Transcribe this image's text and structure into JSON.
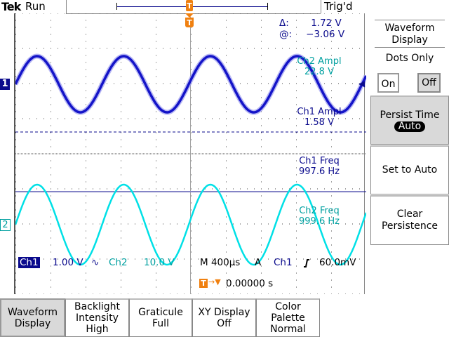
{
  "header": {
    "brand": "Tek",
    "acq_state": "Run",
    "trigger_status": "Trig'd"
  },
  "trigger_marker": "T",
  "cursors": {
    "delta_label": "Δ:",
    "delta_value": "1.72 V",
    "at_label": "@:",
    "at_value": "−3.06 V"
  },
  "measurements": [
    {
      "label": "Ch2 Ampl",
      "value": "22.8 V",
      "channel": 2
    },
    {
      "label": "Ch1 Ampl",
      "value": "1.58 V",
      "channel": 1
    },
    {
      "label": "Ch1 Freq",
      "value": "997.6 Hz",
      "channel": 1
    },
    {
      "label": "Ch2 Freq",
      "value": "999.6 Hz",
      "channel": 2
    }
  ],
  "channels": [
    {
      "marker": "1",
      "color": "#1414c8",
      "label": "Ch1",
      "scale": "1.00 V",
      "coupling_icon": "∿"
    },
    {
      "marker": "2",
      "color": "#00e0e6",
      "label": "Ch2",
      "scale": "10.0 V"
    }
  ],
  "timebase": {
    "main": "M 400µs",
    "trigger_mode": "A",
    "trigger_source": "Ch1",
    "trigger_slope_icon": "rising-edge",
    "trigger_level": "60.0mV",
    "trigger_position": "0.00000 s"
  },
  "side_menu": {
    "title": "Waveform Display",
    "dots_only_label": "Dots Only",
    "dots_on": "On",
    "dots_off": "Off",
    "dots_selected": "Off",
    "persist_label": "Persist Time",
    "persist_value": "Auto",
    "set_auto": "Set to Auto",
    "clear_persistence": "Clear Persistence"
  },
  "bottom_menu": [
    {
      "line1": "Waveform",
      "line2": "Display",
      "line3": "",
      "selected": true
    },
    {
      "line1": "Backlight",
      "line2": "Intensity",
      "line3": "High"
    },
    {
      "line1": "Graticule",
      "line2": "Full",
      "line3": ""
    },
    {
      "line1": "XY Display",
      "line2": "Off",
      "line3": ""
    },
    {
      "line1": "Color",
      "line2": "Palette",
      "line3": "Normal"
    }
  ],
  "colors": {
    "ch1": "#1414c8",
    "ch2": "#00e0e6",
    "accent": "#f08010",
    "text_blue": "#0a0a8c",
    "text_cyan": "#00a0a0"
  }
}
